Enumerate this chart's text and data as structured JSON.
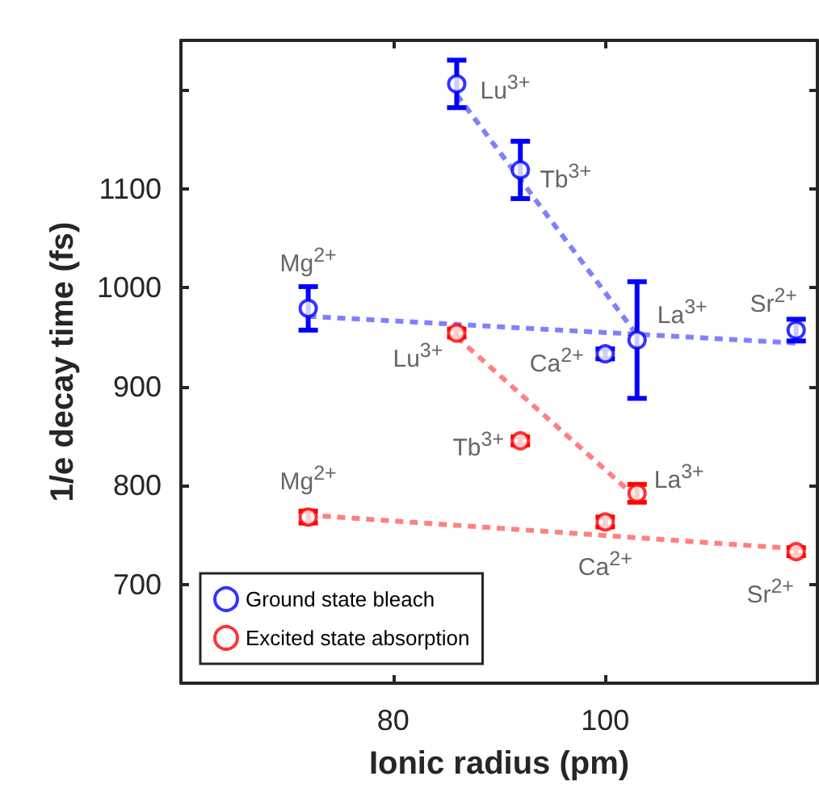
{
  "chart_data": {
    "type": "scatter",
    "xlabel": "Ionic radius (pm)",
    "ylabel": "1/e decay time (fs)",
    "xlim": [
      60,
      120
    ],
    "xticks": [
      80,
      100
    ],
    "ylim": [
      600,
      1250
    ],
    "yticks": [
      700,
      800,
      900,
      1000,
      1100,
      {
        "value": 1200,
        "label": null
      }
    ],
    "legend": "bottom left",
    "marker": "circle",
    "series": [
      {
        "name": "Ground state bleach",
        "color": "#0000ff",
        "x": [
          72,
          86,
          92,
          100,
          103,
          118
        ],
        "values": [
          979,
          1206,
          1119,
          933,
          947,
          957
        ],
        "errors": [
          22,
          24,
          29,
          5,
          59,
          11
        ]
      },
      {
        "name": "Excited state absorption",
        "color": "#ff0000",
        "x": [
          72,
          86,
          92,
          100,
          103,
          118
        ],
        "values": [
          768,
          954,
          845,
          763,
          792,
          733
        ],
        "errors": [
          6,
          4,
          4,
          5,
          9,
          4
        ]
      },
      {
        "type": "line",
        "color": "#8080ff",
        "line_style": "dashed",
        "marker": "none",
        "x": [
          86,
          103
        ],
        "values": [
          1195,
          952
        ]
      },
      {
        "type": "line",
        "color": "#8080ff",
        "line_style": "dashed",
        "marker": "none",
        "x": [
          72,
          118
        ],
        "values": [
          971,
          944
        ]
      },
      {
        "type": "line",
        "color": "#ff8080",
        "line_style": "dashed",
        "marker": "none",
        "x": [
          86,
          103
        ],
        "values": [
          950,
          787
        ]
      },
      {
        "type": "line",
        "color": "#ff8080",
        "line_style": "dashed",
        "marker": "none",
        "x": [
          72,
          118
        ],
        "values": [
          770,
          736
        ]
      }
    ],
    "annotations": [
      {
        "text": "Mg$^{2+}$",
        "x": 72,
        "y": 979
      },
      {
        "text": "Lu$^{3+}$",
        "x": 86,
        "y": 1206
      },
      {
        "text": "Tb$^{3+}$",
        "x": 92,
        "y": 1119
      },
      {
        "text": "Ca$^{2+}$",
        "x": 100,
        "y": 933
      },
      {
        "text": "La$^{3+}$",
        "x": 103,
        "y": 947
      },
      {
        "text": "Sr$^{2+}$",
        "x": 118,
        "y": 957
      },
      {
        "text": "Mg$^{2+}$",
        "x": 72,
        "y": 768
      },
      {
        "text": "Lu$^{3+}$",
        "x": 86,
        "y": 954
      },
      {
        "text": "Tb$^{3+}$",
        "x": 92,
        "y": 845
      },
      {
        "text": "La$^{3+}$",
        "x": 103,
        "y": 792
      },
      {
        "text": "Ca$^{2+}$",
        "x": 100,
        "y": 763
      },
      {
        "text": "Sr$^{2+}$",
        "x": 118,
        "y": 733
      }
    ]
  }
}
